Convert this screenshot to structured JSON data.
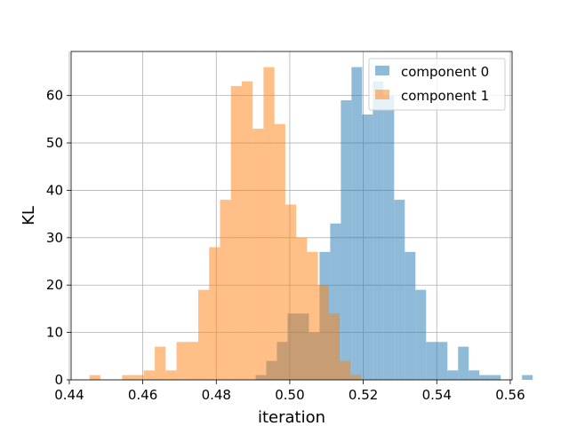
{
  "chart_data": {
    "type": "histogram",
    "title": "",
    "xlabel": "iteration",
    "ylabel": "KL",
    "xlim": [
      0.4405,
      0.5605
    ],
    "ylim": [
      0,
      69.3
    ],
    "grid": true,
    "legend_position": "top-right",
    "xticks": [
      0.44,
      0.46,
      0.48,
      0.5,
      0.52,
      0.54,
      0.56
    ],
    "xtick_labels": [
      "0.44",
      "0.46",
      "0.48",
      "0.50",
      "0.52",
      "0.54",
      "0.56"
    ],
    "yticks": [
      0,
      10,
      20,
      30,
      40,
      50,
      60
    ],
    "ytick_labels": [
      "0",
      "10",
      "20",
      "30",
      "40",
      "50",
      "60"
    ],
    "series": [
      {
        "name": "component 0",
        "color": "#1f77b4",
        "alpha": 0.5,
        "bin_start": 0.4907,
        "bin_width": 0.0029,
        "counts": [
          1,
          4,
          8,
          14,
          14,
          10,
          27,
          33,
          59,
          66,
          56,
          63,
          60,
          38,
          27,
          19,
          8,
          8,
          2,
          7,
          2,
          1,
          1,
          0,
          0,
          1
        ]
      },
      {
        "name": "component 1",
        "color": "#ff7f0e",
        "alpha": 0.5,
        "bin_start": 0.4455,
        "bin_width": 0.00296,
        "counts": [
          1,
          0,
          0,
          1,
          1,
          2,
          7,
          2,
          8,
          8,
          19,
          28,
          38,
          62,
          63,
          53,
          66,
          54,
          37,
          30,
          27,
          20,
          14,
          4,
          1
        ]
      }
    ]
  }
}
